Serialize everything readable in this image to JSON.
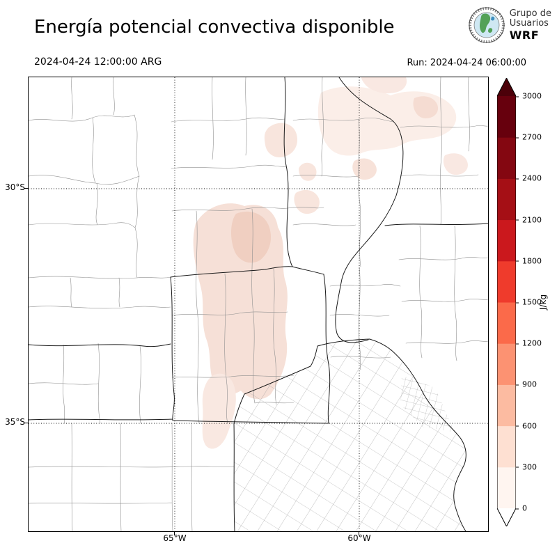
{
  "header": {
    "title": "Energía potencial convectiva disponible",
    "logo": {
      "line1": "Grupo de",
      "line2": "Usuarios",
      "line3": "WRF"
    },
    "valid_time": "2024-04-24 12:00:00 ARG",
    "run_label": "Run: 2024-04-24 06:00:00"
  },
  "map": {
    "yticks": [
      "30°S",
      "35°S"
    ],
    "xticks": [
      "65°W",
      "60°W"
    ]
  },
  "colorbar": {
    "unit": "J/kg",
    "tick_values": [
      0,
      300,
      600,
      900,
      1200,
      1500,
      1800,
      2100,
      2400,
      2700,
      3000
    ],
    "segment_colors": [
      "#fff5f0",
      "#fee0d2",
      "#fcbba1",
      "#fc9272",
      "#fb6a4a",
      "#ef3b2c",
      "#cb181d",
      "#a50f15",
      "#840711",
      "#67000d"
    ],
    "under_color": "#ffffff",
    "over_color": "#4c0009"
  },
  "chart_data": {
    "type": "heatmap",
    "title": "Energía potencial convectiva disponible",
    "unit": "J/kg",
    "valid_time": "2024-04-24 12:00:00 ARG",
    "run": "2024-04-24 06:00:00",
    "levels": [
      0,
      300,
      600,
      900,
      1200,
      1500,
      1800,
      2100,
      2400,
      2700,
      3000
    ],
    "lat_ticks": [
      "30°S",
      "35°S"
    ],
    "lon_ticks": [
      "65°W",
      "60°W"
    ],
    "colormap": [
      "#fff5f0",
      "#fee0d2",
      "#fcbba1",
      "#fc9272",
      "#fb6a4a",
      "#ef3b2c",
      "#cb181d",
      "#a50f15",
      "#840711",
      "#67000d"
    ],
    "observed_value_band": "mostly 0–600 J/kg (light pink shading)",
    "shaded_regions": [
      "central Córdoba area",
      "scattered patches in the northeast of the domain"
    ]
  }
}
